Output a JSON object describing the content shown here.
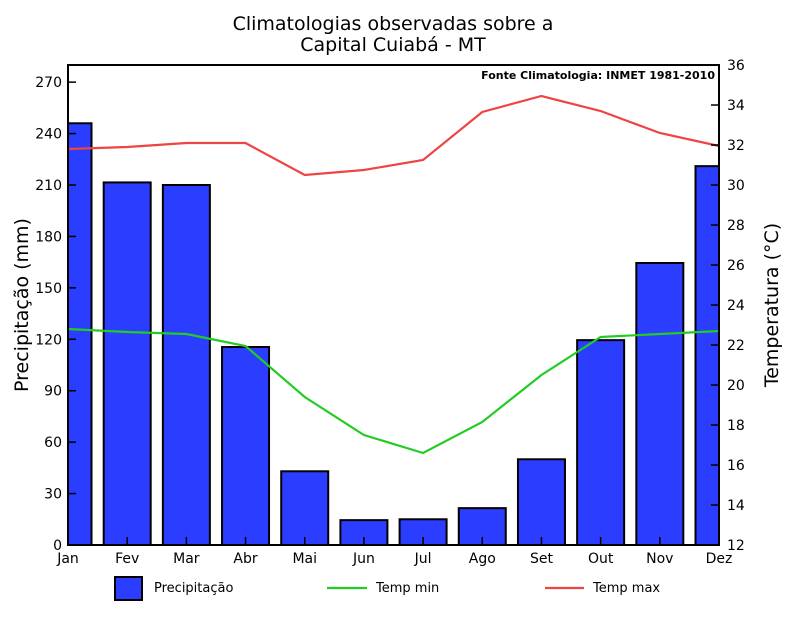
{
  "chart_data": {
    "type": "bar",
    "title_line1": "Climatologias observadas sobre a",
    "title_line2": "Capital Cuiabá - MT",
    "source": "Fonte Climatologia: INMET 1981-2010",
    "ylabel": "Precipitação (mm)",
    "y2label": "Temperatura (°C)",
    "categories": [
      "Jan",
      "Fev",
      "Mar",
      "Abr",
      "Mai",
      "Jun",
      "Jul",
      "Ago",
      "Set",
      "Out",
      "Nov",
      "Dez"
    ],
    "precipitation": [
      246,
      211.5,
      210,
      115.5,
      43,
      14.5,
      15,
      21.5,
      50,
      119.5,
      164.5,
      221
    ],
    "temp_min": [
      22.8,
      22.65,
      22.55,
      21.95,
      19.4,
      17.5,
      16.6,
      18.15,
      20.5,
      22.4,
      22.55,
      22.7
    ],
    "temp_max": [
      31.8,
      31.9,
      32.1,
      32.1,
      30.5,
      30.75,
      31.25,
      33.65,
      34.45,
      33.7,
      32.6,
      31.95
    ],
    "ylim": [
      0,
      280
    ],
    "y2lim": [
      12,
      36
    ],
    "yticks": [
      0,
      30,
      60,
      90,
      120,
      150,
      180,
      210,
      240,
      270
    ],
    "y2ticks": [
      12,
      14,
      16,
      18,
      20,
      22,
      24,
      26,
      28,
      30,
      32,
      34,
      36
    ],
    "legend": {
      "precip": "Precipitação",
      "tmin": "Temp min",
      "tmax": "Temp max"
    },
    "colors": {
      "bar": "#2b3dff",
      "tmin": "#22cc22",
      "tmax": "#ee4444"
    }
  }
}
